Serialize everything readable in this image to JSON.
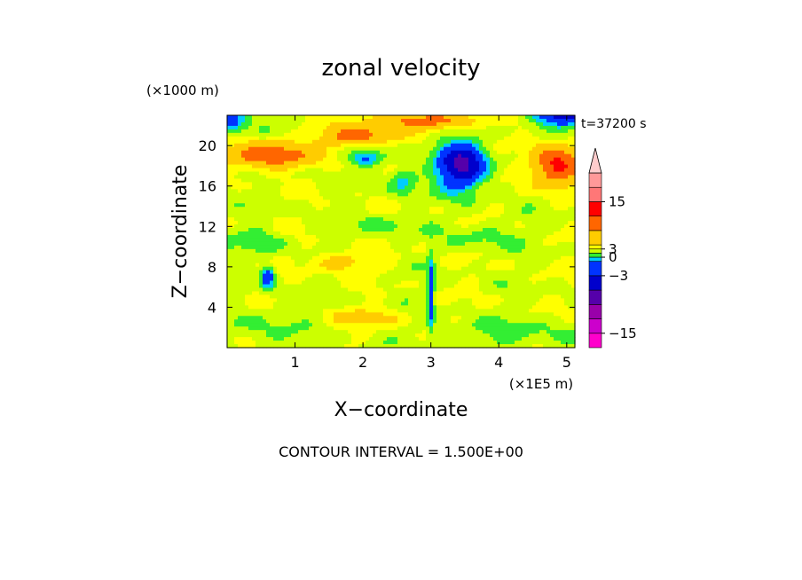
{
  "chart_data": {
    "type": "heatmap",
    "title": "zonal velocity",
    "xlabel": "X−coordinate",
    "ylabel": "Z−coordinate",
    "x_units": "(×1E5 m)",
    "y_units": "(×1000 m)",
    "time_label": "t=37200 s",
    "footer": "CONTOUR INTERVAL = 1.500E+00",
    "xlim": [
      0,
      5.12
    ],
    "ylim": [
      0,
      23
    ],
    "x_ticks": [
      {
        "value": 1,
        "label": "1"
      },
      {
        "value": 2,
        "label": "2"
      },
      {
        "value": 3,
        "label": "3"
      },
      {
        "value": 4,
        "label": "4"
      },
      {
        "value": 5,
        "label": "5"
      }
    ],
    "y_ticks": [
      {
        "value": 4,
        "label": "4"
      },
      {
        "value": 8,
        "label": "8"
      },
      {
        "value": 12,
        "label": "12"
      },
      {
        "value": 16,
        "label": "16"
      },
      {
        "value": 20,
        "label": "20"
      }
    ],
    "colorbar": {
      "levels": [
        -18,
        -15,
        -12,
        -9,
        -6,
        -3,
        -1.5,
        0,
        1.5,
        3,
        6,
        9,
        12,
        15,
        18
      ],
      "colors": [
        "#ff00cc",
        "#cc00cc",
        "#9900aa",
        "#5500aa",
        "#0000cc",
        "#0033ff",
        "#00ccff",
        "#33ee33",
        "#ccff00",
        "#ffff00",
        "#ffcc00",
        "#ff6600",
        "#ff0000",
        "#ff7777",
        "#ff9999",
        "#ffcccc"
      ],
      "tick_labels": [
        {
          "value": 15,
          "label": "15"
        },
        {
          "value": 3,
          "label": "3"
        },
        {
          "value": 0,
          "label": "0"
        },
        {
          "value": -3,
          "label": "−3"
        },
        {
          "value": -15,
          "label": "−15"
        }
      ]
    },
    "field_description": "2D zonal velocity field; predominantly weak positive (0 to 3) values in lower layers, strong negative core (-6 to -12) near x=3.3-3.6, z=16-20, strong positive bands (6-12) near z=18-21 and upper right"
  }
}
